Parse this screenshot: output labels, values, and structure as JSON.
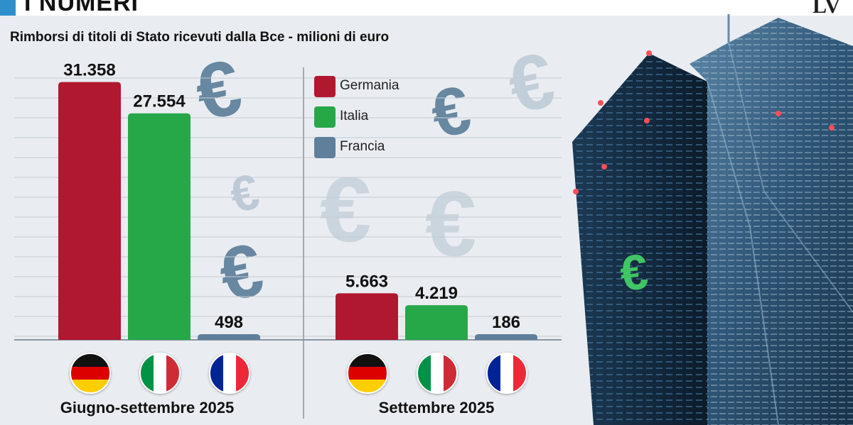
{
  "header": {
    "title": "I NUMERI",
    "logo": "LV"
  },
  "colors": {
    "germania": "#b0182f",
    "italia": "#27a848",
    "francia": "#5f7f9a",
    "accent": "#2f8fcc"
  },
  "chart_data": {
    "type": "bar",
    "title": "Rimborsi di titoli di Stato ricevuti dalla Bce - milioni di euro",
    "legend": {
      "placement": "top",
      "entries": [
        "Germania",
        "Italia",
        "Francia"
      ]
    },
    "grid": true,
    "ylim": [
      0,
      34000
    ],
    "panels": [
      {
        "label": "Giugno-settembre 2025",
        "categories": [
          "Germania",
          "Italia",
          "Francia"
        ],
        "values": [
          31358,
          27554,
          498
        ],
        "value_labels": [
          "31.358",
          "27.554",
          "498"
        ]
      },
      {
        "label": "Settembre 2025",
        "categories": [
          "Germania",
          "Italia",
          "Francia"
        ],
        "values": [
          5663,
          4219,
          186
        ],
        "value_labels": [
          "5.663",
          "4.219",
          "186"
        ]
      }
    ],
    "flags": [
      "germany-flag",
      "italy-flag",
      "france-flag"
    ]
  }
}
